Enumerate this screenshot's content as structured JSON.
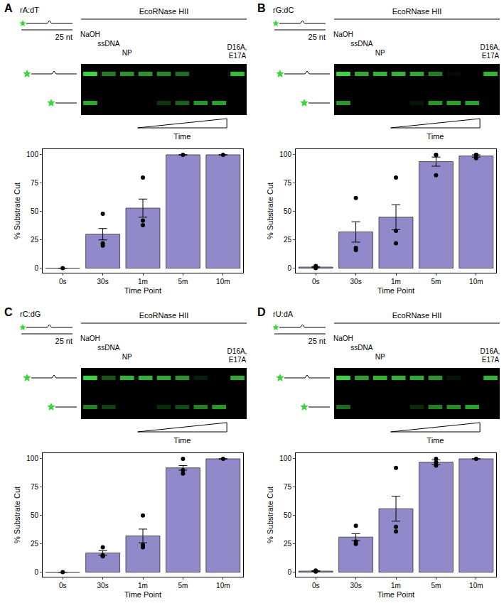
{
  "chart_data": [
    {
      "type": "bar",
      "panel": "A",
      "substrate": "rA:dT",
      "length_label": "25 nt",
      "enzyme": "EcoRNase HII",
      "lanes": [
        "NaOH",
        "ssDNA",
        "NP",
        null,
        null,
        null,
        null,
        null,
        "D16A, E17A"
      ],
      "gradient_label": "Time",
      "gel": {
        "uncut": [
          1,
          0.6,
          0.7,
          0.7,
          0.65,
          0.5,
          0,
          0,
          0.9
        ],
        "cut": [
          0.8,
          0,
          0,
          0,
          0.25,
          0.45,
          0.7,
          0.75,
          0
        ]
      },
      "categories": [
        "0s",
        "30s",
        "1m",
        "5m",
        "10m"
      ],
      "values": [
        0,
        30,
        53,
        100,
        100
      ],
      "errors": [
        0,
        5,
        8,
        0,
        0
      ],
      "points": [
        [
          0
        ],
        [
          48,
          20,
          22
        ],
        [
          80,
          42,
          38
        ],
        [
          100
        ],
        [
          100
        ]
      ],
      "color": "#9189c9",
      "x_label": "Time Point",
      "y_label": "% Substrate Cut",
      "ylim": [
        -4,
        105
      ],
      "yticks": [
        0,
        25,
        50,
        75,
        100
      ],
      "grid": false
    },
    {
      "type": "bar",
      "panel": "B",
      "substrate": "rG:dC",
      "length_label": "25 nt",
      "enzyme": "EcoRNase HII",
      "lanes": [
        "NaOH",
        "ssDNA",
        "NP",
        null,
        null,
        null,
        null,
        null,
        "D16A, E17A"
      ],
      "gradient_label": "Time",
      "gel": {
        "uncut": [
          1,
          0.8,
          0.85,
          0.85,
          0.8,
          0.6,
          0.05,
          0,
          0.85
        ],
        "cut": [
          0.7,
          0,
          0,
          0,
          0.1,
          0.7,
          0.75,
          0.75,
          0
        ]
      },
      "categories": [
        "0s",
        "30s",
        "1m",
        "5m",
        "10m"
      ],
      "values": [
        1,
        32,
        45,
        94,
        99
      ],
      "errors": [
        0.5,
        9,
        11,
        4,
        1
      ],
      "points": [
        [
          1,
          0,
          2
        ],
        [
          62,
          18,
          16
        ],
        [
          80,
          33,
          22
        ],
        [
          100,
          100,
          82
        ],
        [
          100,
          97,
          100
        ]
      ],
      "color": "#9189c9",
      "x_label": "Time Point",
      "y_label": "% Substrate Cut",
      "ylim": [
        -4,
        105
      ],
      "yticks": [
        0,
        25,
        50,
        75,
        100
      ],
      "grid": false
    },
    {
      "type": "bar",
      "panel": "C",
      "substrate": "rC:dG",
      "length_label": "25 nt",
      "enzyme": "EcoRNase HII",
      "lanes": [
        "NaOH",
        "ssDNA",
        "NP",
        null,
        null,
        null,
        null,
        null,
        "D16A, E17A"
      ],
      "gradient_label": "Time",
      "gel": {
        "uncut": [
          1,
          0.4,
          0.85,
          0.85,
          0.8,
          0.7,
          0.15,
          0,
          0.8
        ],
        "cut": [
          0.6,
          0.3,
          0,
          0,
          0.2,
          0.35,
          0.6,
          0.7,
          0
        ]
      },
      "categories": [
        "0s",
        "30s",
        "1m",
        "5m",
        "10m"
      ],
      "values": [
        0,
        17,
        32,
        92,
        100
      ],
      "errors": [
        0,
        2,
        6,
        2,
        0
      ],
      "points": [
        [
          0
        ],
        [
          22,
          15,
          14
        ],
        [
          50,
          24,
          22
        ],
        [
          100,
          90,
          87
        ],
        [
          100
        ]
      ],
      "color": "#9189c9",
      "x_label": "Time Point",
      "y_label": "% Substrate Cut",
      "ylim": [
        -4,
        105
      ],
      "yticks": [
        0,
        25,
        50,
        75,
        100
      ],
      "grid": false
    },
    {
      "type": "bar",
      "panel": "D",
      "substrate": "rU:dA",
      "length_label": "25 nt",
      "enzyme": "EcoRNase HII",
      "lanes": [
        "NaOH",
        "ssDNA",
        "NP",
        null,
        null,
        null,
        null,
        null,
        "D16A, E17A"
      ],
      "gradient_label": "Time",
      "gel": {
        "uncut": [
          1,
          0.75,
          0.85,
          0.85,
          0.8,
          0.7,
          0.1,
          0,
          0.85
        ],
        "cut": [
          0.5,
          0,
          0,
          0,
          0.2,
          0.6,
          0.65,
          0.75,
          0
        ]
      },
      "categories": [
        "0s",
        "30s",
        "1m",
        "5m",
        "10m"
      ],
      "values": [
        1,
        31,
        56,
        97,
        100
      ],
      "errors": [
        0.3,
        3,
        11,
        2,
        0
      ],
      "points": [
        [
          1,
          0.5,
          1.5
        ],
        [
          41,
          27,
          25
        ],
        [
          92,
          40,
          36
        ],
        [
          100,
          94,
          97
        ],
        [
          100
        ]
      ],
      "color": "#9189c9",
      "x_label": "Time Point",
      "y_label": "% Substrate Cut",
      "ylim": [
        -4,
        105
      ],
      "yticks": [
        0,
        25,
        50,
        75,
        100
      ],
      "grid": false
    }
  ]
}
